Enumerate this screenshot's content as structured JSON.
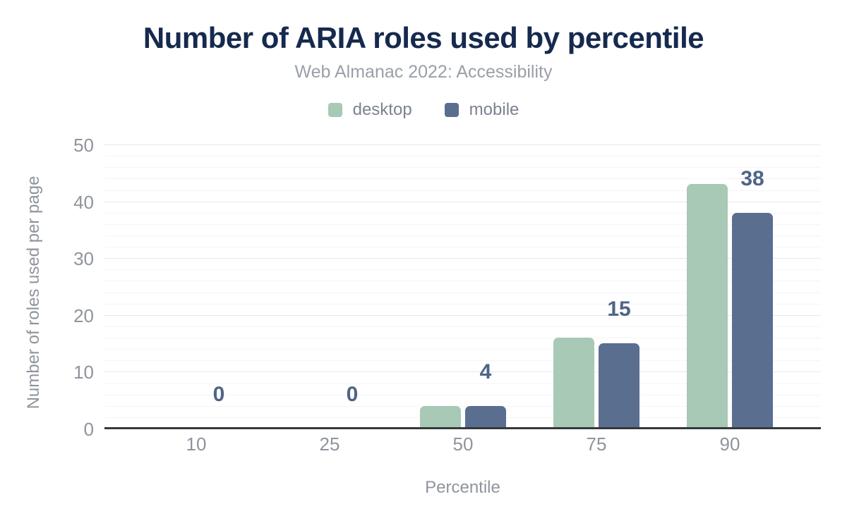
{
  "header": {
    "title": "Number of ARIA roles used by percentile",
    "subtitle": "Web Almanac 2022: Accessibility",
    "title_color": "#16294e",
    "subtitle_color": "#9aa0a8"
  },
  "legend": {
    "items": [
      {
        "label": "desktop",
        "color": "#a7c9b6"
      },
      {
        "label": "mobile",
        "color": "#5a6e90"
      }
    ]
  },
  "chart_data": {
    "type": "bar",
    "title": "Number of ARIA roles used by percentile",
    "subtitle": "Web Almanac 2022: Accessibility",
    "categories": [
      "10",
      "25",
      "50",
      "75",
      "90"
    ],
    "series": [
      {
        "name": "desktop",
        "color": "#a7c9b6",
        "values": [
          0,
          0,
          4,
          16,
          43
        ]
      },
      {
        "name": "mobile",
        "color": "#5a6e90",
        "values": [
          0,
          0,
          4,
          15,
          38
        ]
      }
    ],
    "data_labels": {
      "series": "mobile",
      "values": [
        "0",
        "0",
        "4",
        "15",
        "38"
      ],
      "color": "#4f6487"
    },
    "xlabel": "Percentile",
    "ylabel": "Number of roles used per page",
    "ylim": [
      0,
      50
    ],
    "yticks": [
      0,
      10,
      20,
      30,
      40,
      50
    ],
    "grid": {
      "minor_step": 2,
      "major_step": 10,
      "minor_color": "#f5f5f5",
      "major_color": "#e8e8e8"
    },
    "axis_color": "#35393d",
    "tick_color": "#8f949c",
    "legend_position": "top",
    "grid_on": true
  }
}
